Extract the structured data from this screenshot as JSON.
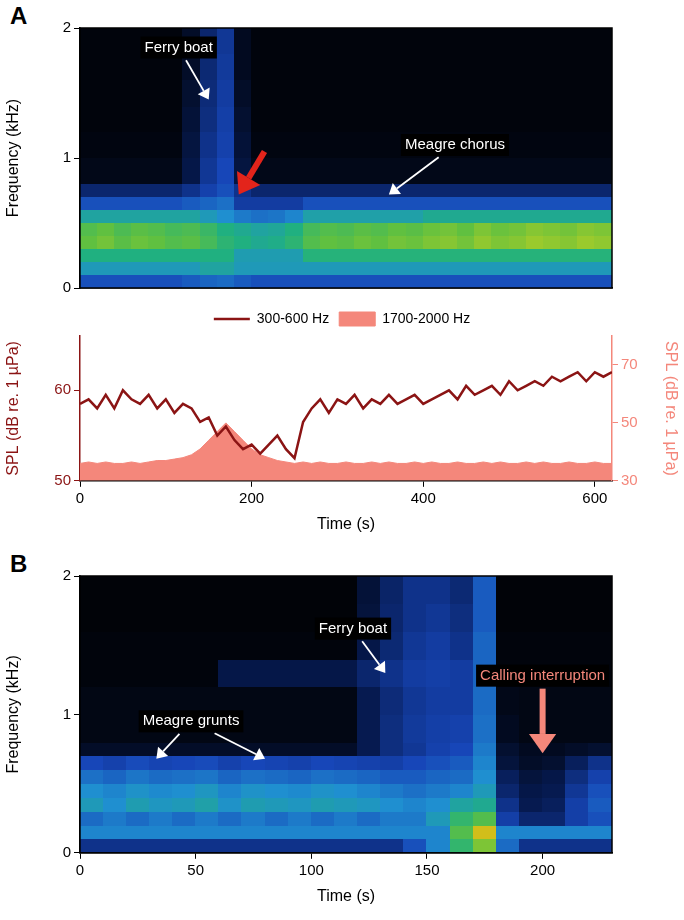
{
  "chart_data": [
    {
      "type": "heatmap",
      "panel": "A",
      "y_label": "Frequency (kHz)",
      "xlim": [
        0,
        620
      ],
      "ylim": [
        0,
        2
      ],
      "yticks": [
        0,
        1,
        2
      ],
      "tick_labels": "y",
      "x_edges": [
        0,
        20,
        40,
        60,
        80,
        100,
        120,
        140,
        160,
        180,
        200,
        220,
        240,
        260,
        280,
        300,
        320,
        340,
        360,
        380,
        400,
        420,
        440,
        460,
        480,
        500,
        520,
        540,
        560,
        580,
        600,
        620
      ],
      "y_edges": [
        0,
        0.1,
        0.2,
        0.3,
        0.4,
        0.5,
        0.6,
        0.7,
        0.8,
        1,
        1.2,
        1.4,
        1.6,
        1.8,
        2
      ],
      "cells": [
        [
          40,
          40,
          40,
          40,
          40,
          40,
          42,
          44,
          45,
          42,
          40,
          40,
          40,
          40,
          40,
          40,
          40,
          40,
          40,
          40,
          40,
          40,
          40,
          40,
          40,
          40,
          40,
          40,
          40,
          40,
          40
        ],
        [
          55,
          55,
          55,
          55,
          55,
          55,
          55,
          58,
          58,
          55,
          55,
          55,
          55,
          55,
          55,
          55,
          55,
          55,
          55,
          55,
          55,
          55,
          55,
          55,
          55,
          55,
          55,
          55,
          55,
          55,
          55
        ],
        [
          62,
          62,
          62,
          62,
          62,
          62,
          62,
          62,
          62,
          56,
          56,
          56,
          56,
          63,
          63,
          63,
          63,
          63,
          63,
          63,
          63,
          63,
          63,
          63,
          63,
          63,
          63,
          63,
          63,
          63,
          63
        ],
        [
          72,
          74,
          71,
          73,
          72,
          70,
          71,
          68,
          64,
          62,
          60,
          61,
          64,
          70,
          72,
          71,
          73,
          72,
          74,
          73,
          75,
          76,
          74,
          77,
          75,
          76,
          78,
          77,
          76,
          78,
          77
        ],
        [
          70,
          72,
          69,
          71,
          70,
          68,
          69,
          66,
          62,
          60,
          58,
          59,
          62,
          68,
          70,
          69,
          71,
          70,
          72,
          71,
          73,
          74,
          72,
          75,
          73,
          74,
          76,
          75,
          74,
          76,
          75
        ],
        [
          58,
          58,
          58,
          58,
          58,
          58,
          58,
          55,
          52,
          48,
          46,
          47,
          50,
          57,
          57,
          57,
          57,
          57,
          57,
          57,
          60,
          60,
          60,
          60,
          60,
          60,
          60,
          60,
          60,
          60,
          60
        ],
        [
          40,
          40,
          40,
          40,
          40,
          40,
          42,
          44,
          46,
          34,
          34,
          34,
          34,
          40,
          40,
          40,
          40,
          40,
          40,
          40,
          40,
          40,
          40,
          40,
          40,
          40,
          40,
          40,
          40,
          40,
          40
        ],
        [
          25,
          25,
          25,
          25,
          25,
          25,
          30,
          36,
          40,
          30,
          25,
          25,
          25,
          25,
          25,
          25,
          25,
          25,
          25,
          25,
          25,
          25,
          25,
          25,
          25,
          25,
          25,
          25,
          25,
          25,
          25
        ],
        [
          6,
          6,
          6,
          6,
          6,
          6,
          18,
          32,
          38,
          16,
          6,
          6,
          6,
          6,
          6,
          6,
          6,
          6,
          6,
          6,
          6,
          6,
          6,
          6,
          6,
          6,
          6,
          6,
          6,
          6,
          6
        ],
        [
          4,
          4,
          4,
          4,
          4,
          4,
          16,
          30,
          36,
          14,
          4,
          4,
          4,
          4,
          4,
          4,
          4,
          4,
          4,
          4,
          4,
          4,
          4,
          4,
          4,
          4,
          4,
          4,
          4,
          4,
          4
        ],
        [
          3,
          3,
          3,
          3,
          3,
          3,
          14,
          28,
          35,
          12,
          3,
          3,
          3,
          3,
          3,
          3,
          3,
          3,
          3,
          3,
          3,
          3,
          3,
          3,
          3,
          3,
          3,
          3,
          3,
          3,
          3
        ],
        [
          3,
          3,
          3,
          3,
          3,
          3,
          12,
          27,
          34,
          10,
          3,
          3,
          3,
          3,
          3,
          3,
          3,
          3,
          3,
          3,
          3,
          3,
          3,
          3,
          3,
          3,
          3,
          3,
          3,
          3,
          3
        ],
        [
          3,
          3,
          3,
          3,
          3,
          3,
          10,
          26,
          33,
          8,
          3,
          3,
          3,
          3,
          3,
          3,
          3,
          3,
          3,
          3,
          3,
          3,
          3,
          3,
          3,
          3,
          3,
          3,
          3,
          3,
          3
        ],
        [
          3,
          3,
          3,
          3,
          3,
          3,
          10,
          25,
          32,
          8,
          3,
          3,
          3,
          3,
          3,
          3,
          3,
          3,
          3,
          3,
          3,
          3,
          3,
          3,
          3,
          3,
          3,
          3,
          3,
          3,
          3
        ]
      ],
      "annotations": [
        {
          "text": "Ferry boat",
          "x": 115,
          "y": 1.85,
          "arrow_to": [
            [
              150,
              1.45
            ]
          ]
        },
        {
          "text": "Meagre chorus",
          "x": 437,
          "y": 1.1,
          "arrow_to": [
            [
              360,
              0.72
            ]
          ]
        },
        {
          "x": 215,
          "y": 1.05,
          "arrow_to": [
            [
              185,
              0.72
            ]
          ],
          "color": "#e3241b"
        }
      ]
    },
    {
      "type": "line",
      "x_label": "Time (s)",
      "y_label": "SPL (dB re. 1 µPa)",
      "y2_label": "SPL (dB re. 1 µPa)",
      "xlim": [
        0,
        620
      ],
      "xticks": [
        0,
        200,
        400,
        600
      ],
      "ylim": [
        50,
        66
      ],
      "yticks": [
        50,
        60
      ],
      "y2lim": [
        30,
        80
      ],
      "y2ticks": [
        30,
        50,
        70
      ],
      "legend": "top",
      "x": [
        0,
        10,
        20,
        30,
        40,
        50,
        60,
        70,
        80,
        90,
        100,
        110,
        120,
        130,
        140,
        150,
        160,
        170,
        180,
        190,
        200,
        210,
        220,
        230,
        240,
        250,
        260,
        270,
        280,
        290,
        300,
        310,
        320,
        330,
        340,
        350,
        360,
        370,
        380,
        390,
        400,
        410,
        420,
        430,
        440,
        450,
        460,
        470,
        480,
        490,
        500,
        510,
        520,
        530,
        540,
        550,
        560,
        570,
        580,
        590,
        600,
        610,
        620
      ],
      "series": [
        {
          "name": "300-600 Hz",
          "color": "#8b1414",
          "values": [
            58.5,
            59,
            58,
            59.5,
            58,
            60,
            59,
            58.5,
            59.5,
            58,
            59,
            57.5,
            58.5,
            58,
            56.5,
            57,
            55,
            56,
            54.5,
            53.5,
            54,
            53,
            54,
            55,
            53.5,
            52.5,
            56.5,
            58,
            59,
            57.5,
            59,
            58.5,
            59.5,
            58,
            59,
            58.5,
            59.5,
            58.5,
            59,
            59.5,
            58.5,
            59,
            59.5,
            60,
            59,
            60.5,
            59.5,
            60,
            60.5,
            59.5,
            61,
            60,
            60.5,
            61,
            60.5,
            61.5,
            61,
            61.5,
            62,
            61,
            62,
            61.5,
            62
          ]
        },
        {
          "name": "1700-2000 Hz",
          "color": "#f4877b",
          "type": "area",
          "axis": "y2",
          "values": [
            36,
            36.5,
            36,
            36.5,
            36,
            36,
            36.5,
            36,
            36.5,
            37,
            37,
            37.5,
            38,
            39,
            41,
            44,
            47,
            50,
            47,
            44,
            41,
            39,
            38,
            37,
            36.5,
            36,
            36.5,
            36,
            36.5,
            36,
            36,
            36.5,
            36,
            36,
            36.5,
            36,
            36.5,
            36,
            36,
            36.5,
            36,
            36.5,
            36,
            36,
            36.5,
            36,
            36,
            36.5,
            36,
            36.5,
            36,
            36,
            36.5,
            36,
            36.5,
            36,
            36,
            36.5,
            36,
            36,
            36.5,
            36,
            36
          ]
        }
      ]
    },
    {
      "type": "heatmap",
      "panel": "B",
      "x_label": "Time (s)",
      "y_label": "Frequency (kHz)",
      "xlim": [
        0,
        230
      ],
      "xticks": [
        0,
        50,
        100,
        150,
        200
      ],
      "ylim": [
        0,
        2
      ],
      "yticks": [
        0,
        1,
        2
      ],
      "x_edges": [
        0,
        10,
        20,
        30,
        40,
        50,
        60,
        70,
        80,
        90,
        100,
        110,
        120,
        130,
        140,
        150,
        160,
        170,
        180,
        190,
        200,
        210,
        220,
        230
      ],
      "y_edges": [
        0,
        0.1,
        0.2,
        0.3,
        0.4,
        0.5,
        0.6,
        0.7,
        0.8,
        1,
        1.2,
        1.4,
        1.6,
        1.8,
        2
      ],
      "cells": [
        [
          30,
          30,
          30,
          30,
          30,
          30,
          30,
          30,
          30,
          30,
          30,
          30,
          30,
          30,
          40,
          50,
          65,
          75,
          45,
          30,
          30,
          30,
          30
        ],
        [
          50,
          50,
          50,
          50,
          50,
          50,
          50,
          50,
          50,
          50,
          50,
          50,
          50,
          50,
          50,
          50,
          70,
          85,
          50,
          50,
          50,
          50,
          50
        ],
        [
          45,
          48,
          45,
          48,
          45,
          48,
          45,
          48,
          45,
          48,
          45,
          48,
          45,
          48,
          48,
          55,
          65,
          70,
          35,
          25,
          25,
          35,
          40
        ],
        [
          55,
          52,
          56,
          54,
          55,
          57,
          53,
          56,
          55,
          54,
          56,
          55,
          54,
          52,
          50,
          52,
          58,
          60,
          30,
          20,
          22,
          35,
          42
        ],
        [
          52,
          50,
          53,
          51,
          52,
          54,
          50,
          53,
          52,
          51,
          53,
          52,
          50,
          48,
          46,
          48,
          50,
          55,
          25,
          18,
          20,
          32,
          40
        ],
        [
          46,
          44,
          47,
          45,
          46,
          47,
          44,
          46,
          45,
          44,
          46,
          45,
          44,
          42,
          42,
          44,
          45,
          52,
          22,
          15,
          18,
          28,
          36
        ],
        [
          38,
          36,
          39,
          37,
          38,
          39,
          36,
          38,
          37,
          36,
          38,
          37,
          36,
          35,
          38,
          40,
          42,
          50,
          15,
          10,
          12,
          22,
          30
        ],
        [
          10,
          10,
          10,
          10,
          10,
          10,
          10,
          10,
          10,
          10,
          10,
          10,
          20,
          28,
          32,
          36,
          38,
          48,
          12,
          8,
          8,
          10,
          12
        ],
        [
          5,
          5,
          5,
          5,
          5,
          5,
          5,
          5,
          5,
          5,
          5,
          5,
          20,
          28,
          33,
          35,
          36,
          46,
          8,
          5,
          5,
          5,
          5
        ],
        [
          5,
          5,
          5,
          5,
          5,
          5,
          5,
          5,
          5,
          5,
          5,
          5,
          20,
          27,
          32,
          34,
          34,
          45,
          6,
          5,
          5,
          5,
          5
        ],
        [
          3,
          3,
          3,
          3,
          3,
          3,
          18,
          18,
          18,
          18,
          18,
          18,
          25,
          30,
          34,
          35,
          34,
          44,
          3,
          3,
          3,
          3,
          3
        ],
        [
          3,
          3,
          3,
          3,
          3,
          3,
          3,
          3,
          3,
          3,
          3,
          3,
          18,
          26,
          32,
          34,
          30,
          44,
          3,
          3,
          3,
          3,
          3
        ],
        [
          2,
          2,
          2,
          2,
          2,
          2,
          2,
          2,
          2,
          2,
          2,
          2,
          15,
          25,
          30,
          32,
          28,
          42,
          2,
          2,
          2,
          2,
          2
        ],
        [
          2,
          2,
          2,
          2,
          2,
          2,
          2,
          2,
          2,
          2,
          2,
          2,
          14,
          24,
          30,
          30,
          26,
          42,
          2,
          2,
          2,
          2,
          2
        ]
      ],
      "annotations": [
        {
          "text": "Meagre grunts",
          "x": 48,
          "y": 0.95,
          "arrow_to": [
            [
              33,
              0.68
            ],
            [
              80,
              0.68
            ]
          ]
        },
        {
          "text": "Ferry boat",
          "x": 118,
          "y": 1.62,
          "arrow_to": [
            [
              132,
              1.3
            ]
          ]
        },
        {
          "text": "Calling interruption",
          "x": 200,
          "y": 1.28,
          "arrow_to": [
            [
              200,
              0.72
            ]
          ],
          "color": "#f4877b"
        }
      ]
    }
  ]
}
